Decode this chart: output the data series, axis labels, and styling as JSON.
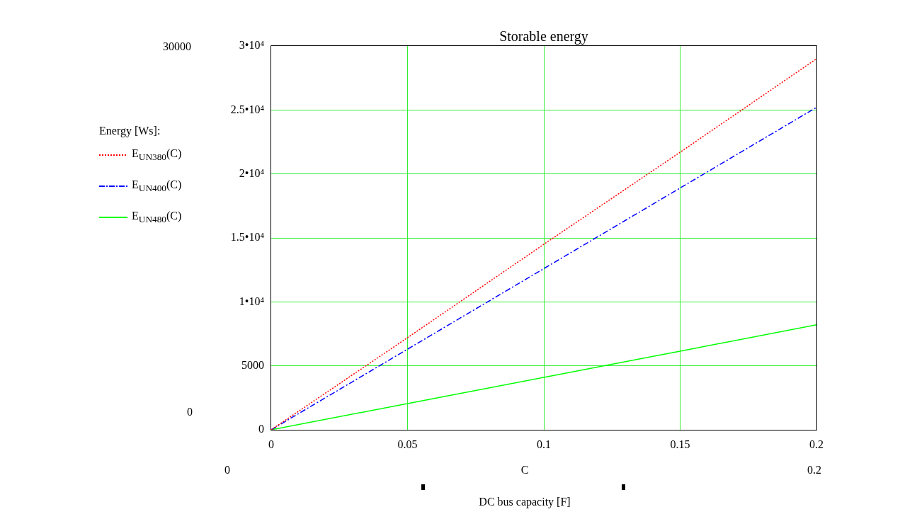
{
  "chart_data": {
    "type": "line",
    "title": "Storable energy",
    "xlabel": "DC bus capacity [F]",
    "legend_title": "Energy [Ws]:",
    "x": [
      0,
      0.05,
      0.1,
      0.15,
      0.2
    ],
    "series": [
      {
        "name": "E$_{UN380}$(C)",
        "color": "#ff0000",
        "line_style": "dotted",
        "values": [
          0,
          7200,
          14500,
          21700,
          29000
        ]
      },
      {
        "name": "E$_{UN400}$(C)",
        "color": "#0000ff",
        "line_style": "dashdot",
        "values": [
          0,
          6300,
          12600,
          18900,
          25200
        ]
      },
      {
        "name": "E$_{UN480}$(C)",
        "color": "#00ff00",
        "line_style": "solid",
        "values": [
          0,
          2050,
          4100,
          6150,
          8200
        ]
      }
    ],
    "xlim": [
      0,
      0.2
    ],
    "xticks": [
      0,
      0.05,
      0.1,
      0.15,
      0.2
    ],
    "ylim": [
      0,
      30000
    ],
    "yticks": [
      0,
      5000,
      {
        "value": 10000,
        "label": "1•10⁴"
      },
      {
        "value": 15000,
        "label": "1.5•10⁴"
      },
      {
        "value": 20000,
        "label": "2•10⁴"
      },
      {
        "value": 25000,
        "label": "2.5•10⁴"
      },
      {
        "value": 30000,
        "label": "3•10⁴"
      }
    ],
    "grid": true,
    "legend": "left",
    "marker": "none",
    "annotations": [
      "30000",
      "0",
      "0",
      "C",
      "0.2"
    ]
  }
}
